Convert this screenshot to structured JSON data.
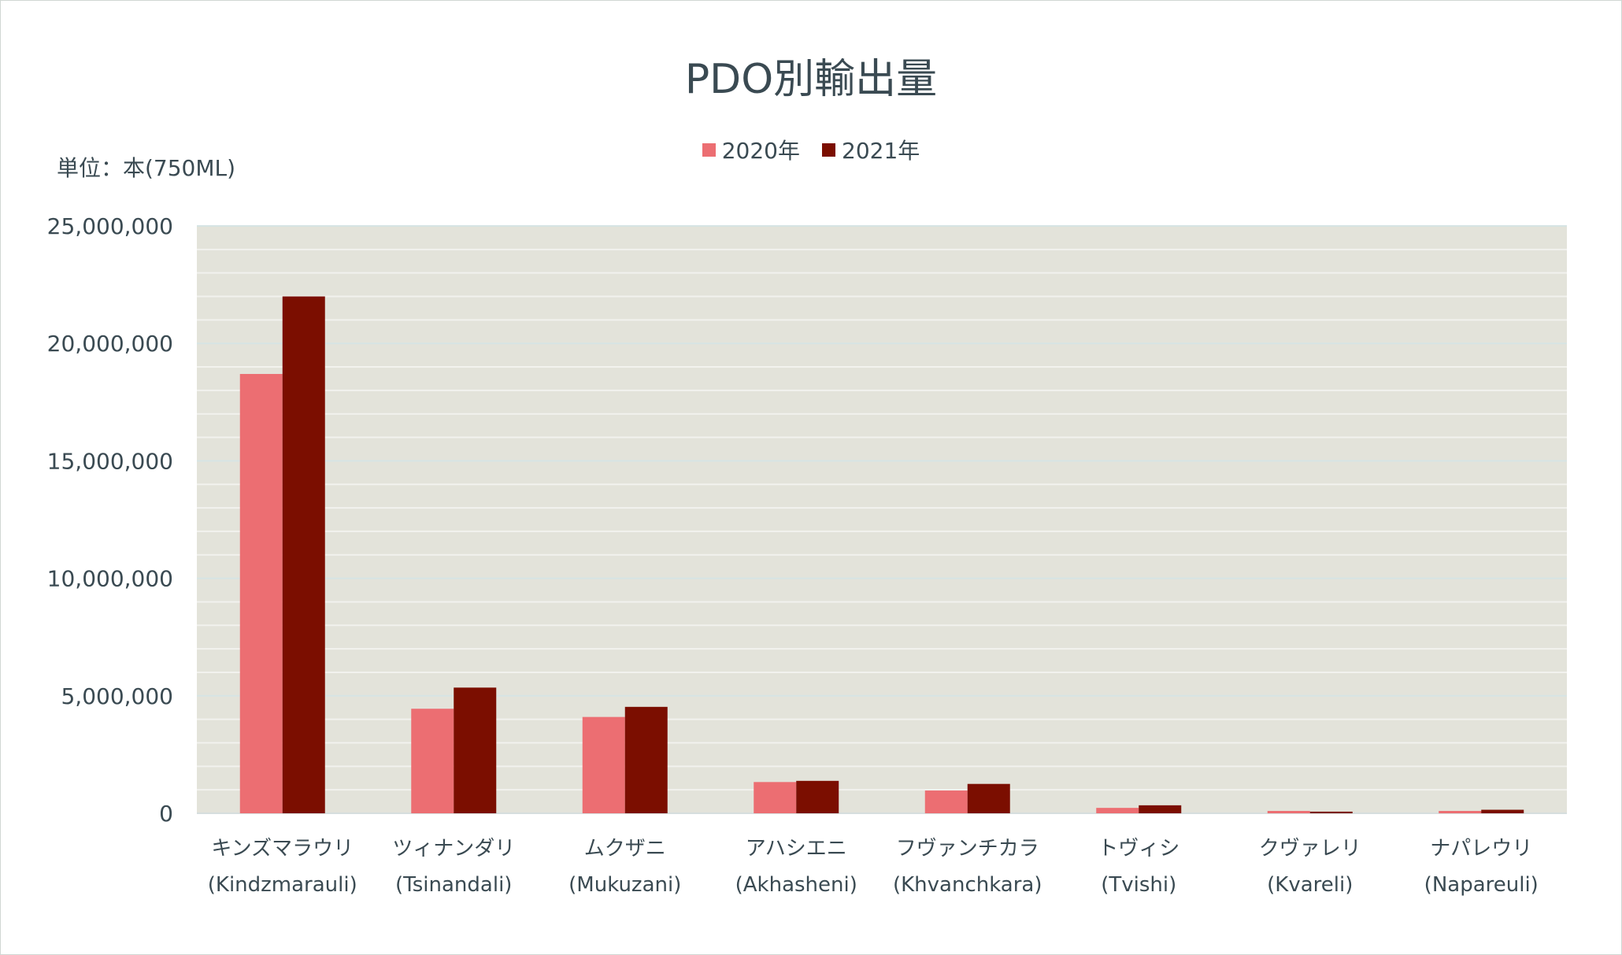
{
  "chart_data": {
    "type": "bar",
    "title": "PDO別輸出量",
    "unit_label": "単位：本(750ML)",
    "ylim": [
      0,
      25000000
    ],
    "yticks": [
      "0",
      "5,000,000",
      "10,000,000",
      "15,000,000",
      "20,000,000",
      "25,000,000"
    ],
    "ytick_values": [
      0,
      5000000,
      10000000,
      15000000,
      20000000,
      25000000
    ],
    "categories": [
      {
        "jp": "キンズマラウリ",
        "en": "(Kindzmarauli)"
      },
      {
        "jp": "ツィナンダリ",
        "en": "(Tsinandali)"
      },
      {
        "jp": "ムクザニ",
        "en": "(Mukuzani)"
      },
      {
        "jp": "アハシエニ",
        "en": "(Akhasheni)"
      },
      {
        "jp": "フヴァンチカラ",
        "en": "(Khvanchkara)"
      },
      {
        "jp": "トヴィシ",
        "en": "(Tvishi)"
      },
      {
        "jp": "クヴァレリ",
        "en": "(Kvareli)"
      },
      {
        "jp": "ナパレウリ",
        "en": "(Napareuli)"
      }
    ],
    "series": [
      {
        "name": "2020年",
        "color": "#ec6e72",
        "values": [
          18700000,
          4450000,
          4100000,
          1330000,
          970000,
          230000,
          100000,
          100000
        ]
      },
      {
        "name": "2021年",
        "color": "#7b0e00",
        "values": [
          22000000,
          5350000,
          4530000,
          1380000,
          1250000,
          340000,
          70000,
          150000
        ]
      }
    ],
    "grid": true,
    "legend_position": "top",
    "plot_background": "#e3e3da"
  }
}
